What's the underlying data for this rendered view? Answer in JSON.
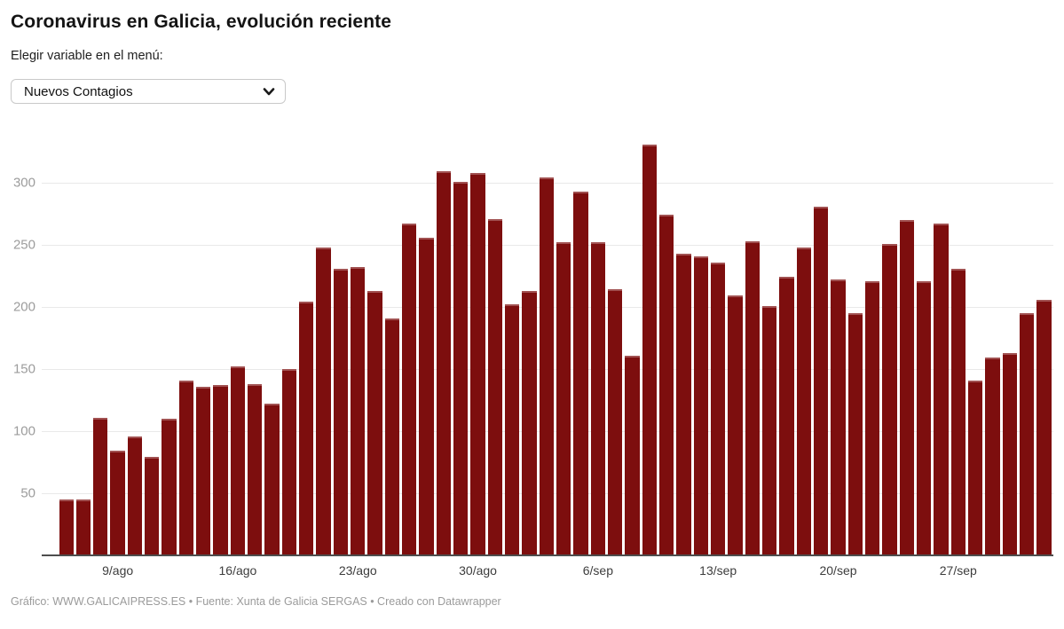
{
  "header": {
    "title": "Coronavirus en Galicia, evolución reciente",
    "subtitle": "Elegir variable en el menú:"
  },
  "controls": {
    "variable_select": {
      "value": "Nuevos Contagios",
      "icon": "chevron-down-icon"
    }
  },
  "chart_data": {
    "type": "bar",
    "title": "Nuevos Contagios",
    "xlabel": "",
    "ylabel": "",
    "ylim": [
      0,
      340
    ],
    "grid": "horizontal",
    "legend_position": "none",
    "bar_color": "#7d0e0e",
    "axis_line_color": "#4d4d4d",
    "categories": [
      "6/ago",
      "7/ago",
      "8/ago",
      "9/ago",
      "10/ago",
      "11/ago",
      "12/ago",
      "13/ago",
      "14/ago",
      "15/ago",
      "16/ago",
      "17/ago",
      "18/ago",
      "19/ago",
      "20/ago",
      "21/ago",
      "22/ago",
      "23/ago",
      "24/ago",
      "25/ago",
      "26/ago",
      "27/ago",
      "28/ago",
      "29/ago",
      "30/ago",
      "31/ago",
      "1/sep",
      "2/sep",
      "3/sep",
      "4/sep",
      "5/sep",
      "6/sep",
      "7/sep",
      "8/sep",
      "9/sep",
      "10/sep",
      "11/sep",
      "12/sep",
      "13/sep",
      "14/sep",
      "15/sep",
      "16/sep",
      "17/sep",
      "18/sep",
      "19/sep",
      "20/sep",
      "21/sep",
      "22/sep",
      "23/sep",
      "24/sep",
      "25/sep",
      "26/sep",
      "27/sep",
      "28/sep",
      "29/sep",
      "30/sep",
      "1/oct",
      "2/oct"
    ],
    "values": [
      45,
      45,
      111,
      84,
      96,
      79,
      110,
      141,
      136,
      137,
      152,
      138,
      122,
      150,
      204,
      248,
      231,
      232,
      213,
      191,
      267,
      256,
      309,
      301,
      308,
      271,
      202,
      213,
      304,
      252,
      293,
      252,
      214,
      161,
      331,
      274,
      243,
      241,
      236,
      209,
      253,
      201,
      224,
      248,
      281,
      222,
      195,
      221,
      251,
      270,
      221,
      267,
      231,
      141,
      159,
      163,
      195,
      206
    ],
    "y_ticks": [
      50,
      100,
      150,
      200,
      250,
      300
    ],
    "x_tick_labels": [
      "9/ago",
      "16/ago",
      "23/ago",
      "30/ago",
      "6/sep",
      "13/sep",
      "20/sep",
      "27/sep"
    ],
    "x_tick_indices": [
      3,
      10,
      17,
      24,
      31,
      38,
      45,
      52
    ]
  },
  "footer": {
    "credit": "Gráfico: WWW.GALICAIPRESS.ES • Fuente: Xunta de Galicia SERGAS • Creado con Datawrapper"
  }
}
